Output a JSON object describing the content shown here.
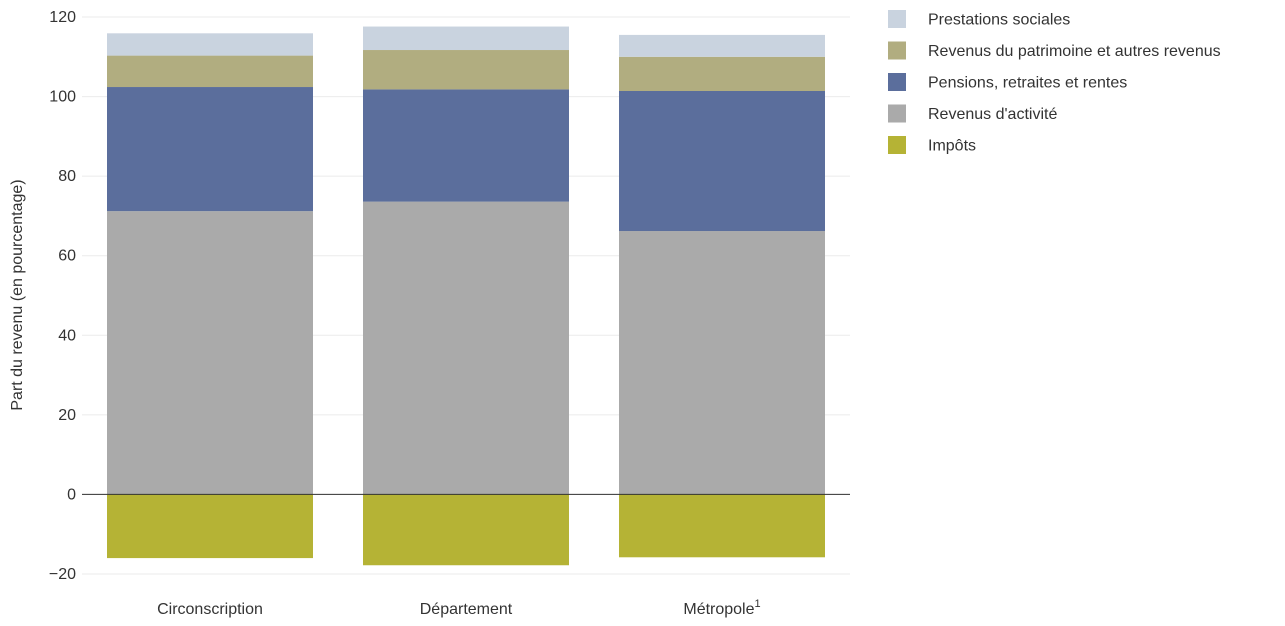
{
  "chart_data": {
    "type": "bar",
    "stacked": true,
    "title": "",
    "xlabel": "",
    "ylabel": "Part du revenu (en pourcentage)",
    "ylim": [
      -20,
      120
    ],
    "yticks": [
      -20,
      0,
      20,
      40,
      60,
      80,
      100,
      120
    ],
    "ytick_labels": [
      "−20",
      "0",
      "20",
      "40",
      "60",
      "80",
      "100",
      "120"
    ],
    "grid": true,
    "legend_position": "top-right",
    "categories": [
      {
        "label": "Circonscription",
        "sup": ""
      },
      {
        "label": "Département",
        "sup": ""
      },
      {
        "label": "Métropole",
        "sup": "1"
      }
    ],
    "series": [
      {
        "name": "Impôts",
        "color": "#b5b335",
        "values": [
          -16.0,
          -17.8,
          -15.8
        ]
      },
      {
        "name": "Revenus d'activité",
        "color": "#aaaaaa",
        "values": [
          71.2,
          73.6,
          66.2
        ]
      },
      {
        "name": "Pensions, retraites et rentes",
        "color": "#5b6e9c",
        "values": [
          31.2,
          28.2,
          35.2
        ]
      },
      {
        "name": "Revenus du patrimoine et autres revenus",
        "color": "#b1ad80",
        "values": [
          7.9,
          9.9,
          8.6
        ]
      },
      {
        "name": "Prestations sociales",
        "color": "#c9d3df",
        "values": [
          5.6,
          5.9,
          5.5
        ]
      }
    ],
    "legend_order": [
      "Prestations sociales",
      "Revenus du patrimoine et autres revenus",
      "Pensions, retraites et rentes",
      "Revenus d'activité",
      "Impôts"
    ]
  }
}
